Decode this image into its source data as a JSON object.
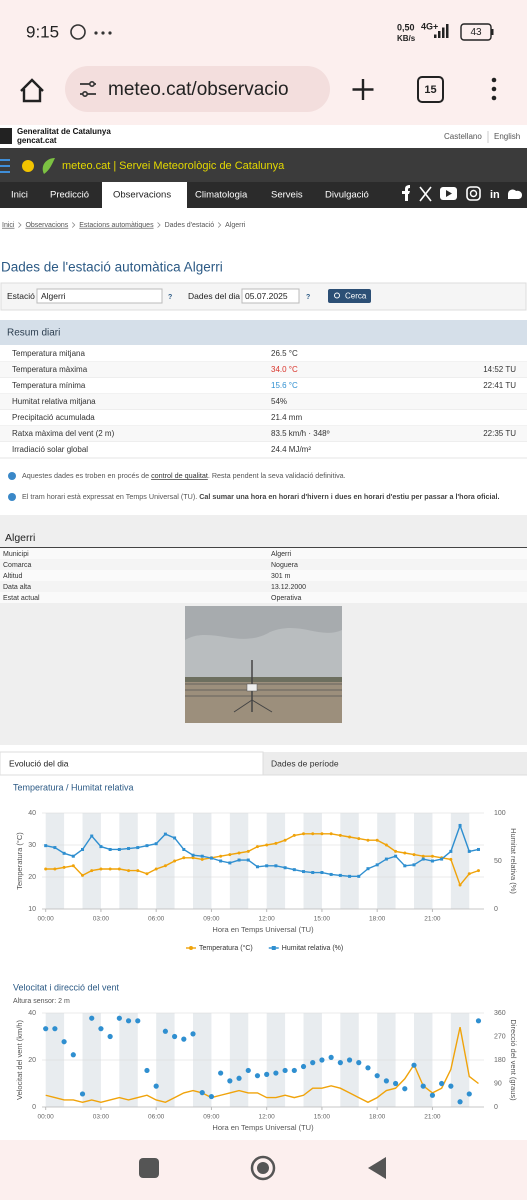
{
  "status_bar": {
    "time": "9:15",
    "speed": "0,50",
    "speed_unit": "KB/s",
    "network": "4G+",
    "battery": "43"
  },
  "browser": {
    "url": "meteo.cat/observacio",
    "tabs": "15"
  },
  "gencat": {
    "name": "Generalitat de Catalunya",
    "domain": "gencat.cat",
    "languages": [
      "Castellano",
      "English"
    ]
  },
  "site": {
    "name": "meteo.cat",
    "separator": "|",
    "service": "Servei Meteorològic de Catalunya"
  },
  "nav": {
    "items": [
      "Inici",
      "Predicció",
      "Observacions",
      "Climatologia",
      "Serveis",
      "Divulgació"
    ],
    "active": 2,
    "linkedin": "in"
  },
  "breadcrumb": [
    "Inici",
    "Observacions",
    "Estacions automàtiques",
    "Dades d'estació",
    "Algerri"
  ],
  "page_title": "Dades de l'estació automàtica Algerri",
  "form": {
    "station_label": "Estació",
    "station": "Algerri",
    "help": "?",
    "date_label": "Dades del dia",
    "date": "05.07.2025",
    "button": "Cerca"
  },
  "summary": {
    "title": "Resum diari",
    "rows": [
      {
        "label": "Temperatura mitjana",
        "value": "26.5 °C"
      },
      {
        "label": "Temperatura màxima",
        "value": "34.0 °C",
        "value_color": "#d9342b",
        "time": "14:52 TU"
      },
      {
        "label": "Temperatura mínima",
        "value": "15.6 °C",
        "value_color": "#2f8fd0",
        "time": "22:41 TU"
      },
      {
        "label": "Humitat relativa mitjana",
        "value": "54%"
      },
      {
        "label": "Precipitació acumulada",
        "value": "21.4 mm"
      },
      {
        "label": "Ratxa màxima del vent (2 m)",
        "value": "83.5 km/h · 348º",
        "time": "22:35 TU"
      },
      {
        "label": "Irradiació solar global",
        "value": "24.4 MJ/m²"
      }
    ]
  },
  "notes": [
    {
      "before": "Aquestes dades es troben en procés de ",
      "link": "control de qualitat",
      "after": ". Resta pendent la seva validació definitiva."
    },
    {
      "before": "El tram horari està expressat en Temps Universal (TU). ",
      "bold": "Cal sumar una hora en horari d'hivern i dues en horari d'estiu per passar a l'hora oficial."
    }
  ],
  "station": {
    "title": "Algerri",
    "rows": [
      [
        "Municipi",
        "Algerri"
      ],
      [
        "Comarca",
        "Noguera"
      ],
      [
        "Altitud",
        "301 m"
      ],
      [
        "Data alta",
        "13.12.2000"
      ],
      [
        "Estat actual",
        "Operativa"
      ]
    ]
  },
  "tabs": [
    "Evolució del dia",
    "Dades de període"
  ],
  "chart_data": [
    {
      "type": "line",
      "title": "Temperatura / Humitat relativa",
      "x_label": "Hora en Temps Universal (TU)",
      "y_label": "Temperatura (°C)",
      "y2_label": "Humitat relativa (%)",
      "x": [
        0,
        0.5,
        1,
        1.5,
        2,
        2.5,
        3,
        3.5,
        4,
        4.5,
        5,
        5.5,
        6,
        6.5,
        7,
        7.5,
        8,
        8.5,
        9,
        9.5,
        10,
        10.5,
        11,
        11.5,
        12,
        12.5,
        13,
        13.5,
        14,
        14.5,
        15,
        15.5,
        16,
        16.5,
        17,
        17.5,
        18,
        18.5,
        19,
        19.5,
        20,
        20.5,
        21,
        21.5,
        22,
        22.5,
        23,
        23.5
      ],
      "xlim": [
        -0.2,
        23.8
      ],
      "xticks": [
        {
          "value": 0,
          "label": "00:00"
        },
        {
          "value": 3,
          "label": "03:00"
        },
        {
          "value": 6,
          "label": "06:00"
        },
        {
          "value": 9,
          "label": "09:00"
        },
        {
          "value": 12,
          "label": "12:00"
        },
        {
          "value": 15,
          "label": "15:00"
        },
        {
          "value": 18,
          "label": "18:00"
        },
        {
          "value": 21,
          "label": "21:00"
        }
      ],
      "ylim": [
        10,
        40
      ],
      "yticks": [
        10,
        20,
        30,
        40
      ],
      "y2lim": [
        0,
        100
      ],
      "y2ticks": [
        0,
        50,
        100
      ],
      "grid": true,
      "series": [
        {
          "name": "Temperatura (°C)",
          "color": "#f0a30a",
          "marker": "circle",
          "values": [
            22.5,
            22.5,
            23,
            23.5,
            20.5,
            22,
            22.5,
            22.5,
            22.5,
            22,
            22,
            21,
            22.5,
            23.5,
            25,
            26,
            26,
            25.5,
            26,
            26.5,
            27,
            27.5,
            28,
            29.5,
            30,
            30.5,
            31.5,
            33,
            33.5,
            33.5,
            33.5,
            33.5,
            33,
            32.5,
            32,
            31.5,
            31.5,
            30,
            28,
            27.5,
            27,
            26.5,
            26.5,
            26,
            25.5,
            17.5,
            21,
            22
          ]
        },
        {
          "name": "Humitat relativa (%)",
          "color": "#2f8fd0",
          "marker": "square",
          "axis": "y2",
          "values": [
            66,
            64,
            58,
            55,
            62,
            76,
            65,
            62,
            62,
            63,
            64,
            66,
            68,
            78,
            74,
            62,
            56,
            55,
            53,
            50,
            48,
            51,
            51,
            44,
            45,
            45,
            43,
            41,
            39,
            38,
            38,
            36,
            35,
            34,
            34,
            42,
            46,
            52,
            55,
            45,
            46,
            52,
            50,
            52,
            60,
            87,
            60,
            62
          ]
        }
      ]
    },
    {
      "type": "line",
      "title": "Velocitat i direcció del vent",
      "subtitle": "Altura sensor: 2 m",
      "x_label": "Hora en Temps Universal (TU)",
      "y_label": "Velocitat del vent (km/h)",
      "y2_label": "Direcció del vent (graus)",
      "x": [
        0,
        0.5,
        1,
        1.5,
        2,
        2.5,
        3,
        3.5,
        4,
        4.5,
        5,
        5.5,
        6,
        6.5,
        7,
        7.5,
        8,
        8.5,
        9,
        9.5,
        10,
        10.5,
        11,
        11.5,
        12,
        12.5,
        13,
        13.5,
        14,
        14.5,
        15,
        15.5,
        16,
        16.5,
        17,
        17.5,
        18,
        18.5,
        19,
        19.5,
        20,
        20.5,
        21,
        21.5,
        22,
        22.5,
        23,
        23.5
      ],
      "xlim": [
        -0.2,
        23.8
      ],
      "xticks": [
        {
          "value": 0,
          "label": "00:00"
        },
        {
          "value": 3,
          "label": "03:00"
        },
        {
          "value": 6,
          "label": "06:00"
        },
        {
          "value": 9,
          "label": "09:00"
        },
        {
          "value": 12,
          "label": "12:00"
        },
        {
          "value": 15,
          "label": "15:00"
        },
        {
          "value": 18,
          "label": "18:00"
        },
        {
          "value": 21,
          "label": "21:00"
        }
      ],
      "ylim": [
        0,
        40
      ],
      "yticks": [
        0,
        20,
        40
      ],
      "y2lim": [
        0,
        360
      ],
      "y2ticks": [
        0,
        90,
        180,
        270,
        360
      ],
      "grid": true,
      "series": [
        {
          "color": "#f0a30a",
          "values": [
            5,
            4,
            3,
            3,
            2,
            3,
            2,
            3,
            4,
            3,
            4,
            5,
            3,
            2,
            4,
            6,
            7,
            6,
            4,
            5,
            6,
            7,
            6,
            6,
            4,
            4,
            5,
            4,
            5,
            8,
            8,
            9,
            8,
            6,
            4,
            2,
            4,
            7,
            8,
            12,
            18,
            9,
            6,
            8,
            16,
            34,
            13,
            10
          ]
        },
        {
          "color": "#2f8fd0",
          "type": "scatter",
          "marker": "circle",
          "axis": "y2",
          "values": [
            300,
            300,
            250,
            200,
            50,
            340,
            300,
            270,
            340,
            330,
            330,
            140,
            80,
            290,
            270,
            260,
            280,
            55,
            40,
            130,
            100,
            110,
            140,
            120,
            125,
            130,
            140,
            140,
            155,
            170,
            180,
            190,
            170,
            180,
            170,
            150,
            120,
            100,
            90,
            70,
            160,
            80,
            45,
            90,
            80,
            20,
            50,
            330
          ]
        }
      ]
    }
  ]
}
